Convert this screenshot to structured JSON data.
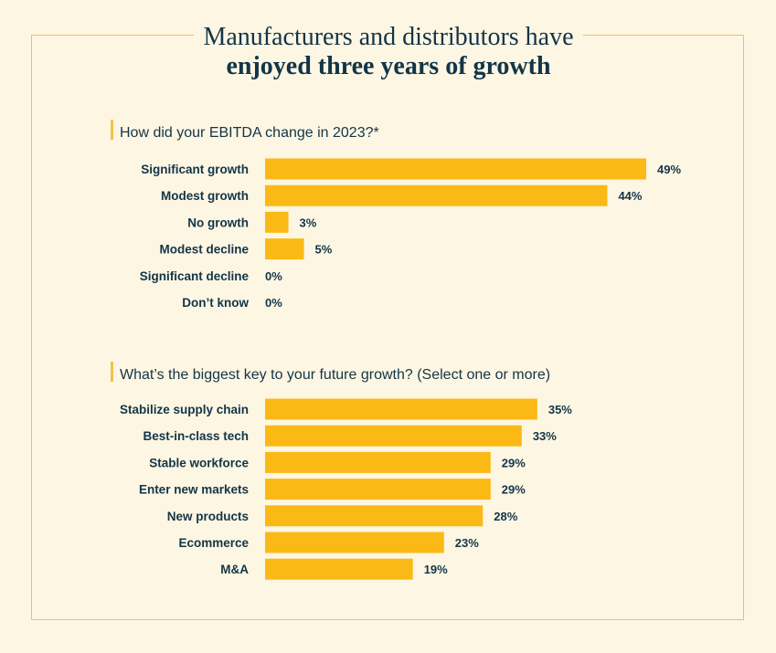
{
  "title": {
    "line1": "Manufacturers and distributors have",
    "line2": "enjoyed three years of growth"
  },
  "colors": {
    "bar": "#fbb916",
    "accent": "#f3c24a",
    "text": "#133548",
    "background": "#fdf6e3"
  },
  "chart_data": [
    {
      "type": "bar",
      "orientation": "horizontal",
      "title": "How did your EBITDA change in 2023?*",
      "categories": [
        "Significant growth",
        "Modest growth",
        "No growth",
        "Modest decline",
        "Significant decline",
        "Don’t know"
      ],
      "values": [
        49,
        44,
        3,
        5,
        0,
        0
      ],
      "value_labels": [
        "49%",
        "44%",
        "3%",
        "5%",
        "0%",
        "0%"
      ],
      "xlim": [
        0,
        50
      ]
    },
    {
      "type": "bar",
      "orientation": "horizontal",
      "title": "What’s the biggest key to your future growth? (Select one or more)",
      "categories": [
        "Stabilize supply chain",
        "Best-in-class tech",
        "Stable workforce",
        "Enter new markets",
        "New products",
        "Ecommerce",
        "M&A"
      ],
      "values": [
        35,
        33,
        29,
        29,
        28,
        23,
        19
      ],
      "value_labels": [
        "35%",
        "33%",
        "29%",
        "29%",
        "28%",
        "23%",
        "19%"
      ],
      "xlim": [
        0,
        50
      ]
    }
  ]
}
